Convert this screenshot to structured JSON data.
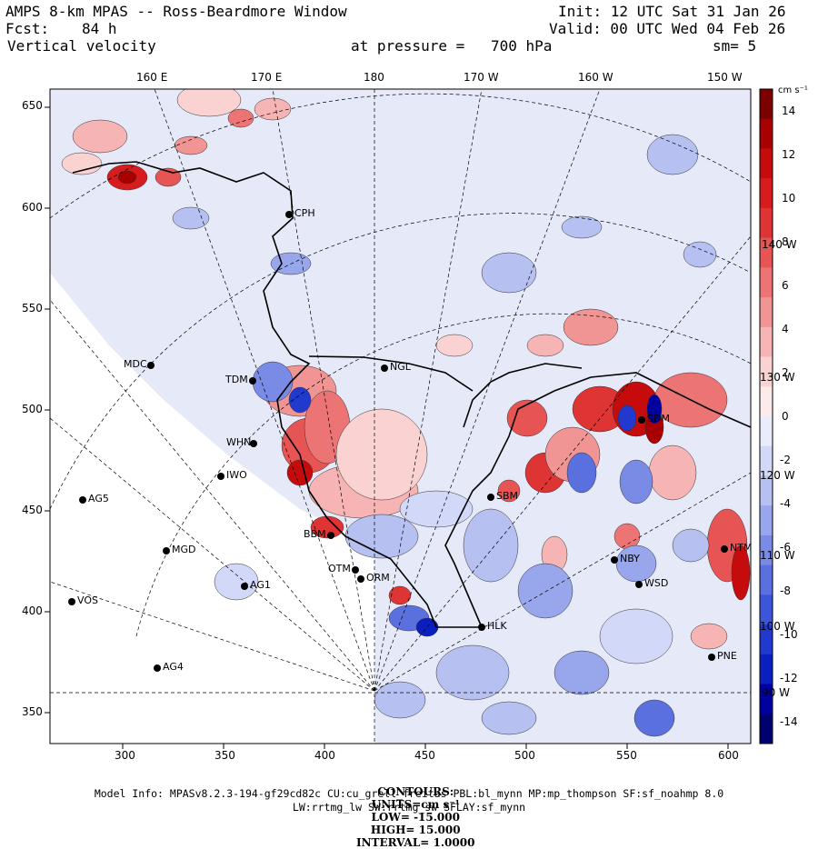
{
  "header": {
    "title": "AMPS 8-km MPAS -- Ross-Beardmore Window",
    "forecast_label": "Fcst:",
    "forecast_value": "84 h",
    "field": "Vertical velocity",
    "init": "Init: 12 UTC Sat 31 Jan 26",
    "valid": "Valid: 00 UTC Wed 04 Feb 26",
    "pressure_label": "at pressure =",
    "pressure_value": "700 hPa",
    "smoothing": "sm= 5"
  },
  "top_longitudes": [
    "160 E",
    "170 E",
    "180",
    "170 W",
    "160 W",
    "150 W"
  ],
  "grid_lat_labels": [
    "140 W",
    "130 W",
    "120 W",
    "110 W",
    "100 W",
    "90 W"
  ],
  "y_ticks": [
    "650",
    "600",
    "550",
    "500",
    "450",
    "400",
    "350"
  ],
  "x_ticks": [
    "300",
    "350",
    "400",
    "450",
    "500",
    "550",
    "600"
  ],
  "colorbar": {
    "units": "cm s⁻¹",
    "ticks": [
      "14",
      "12",
      "10",
      "8",
      "6",
      "4",
      "2",
      "0",
      "-2",
      "-4",
      "-6",
      "-8",
      "-10",
      "-12",
      "-14"
    ],
    "colors_positive": [
      "#fdeaea",
      "#fad2d2",
      "#f6b4b4",
      "#f19494",
      "#ec7474",
      "#e65454",
      "#df3434",
      "#d61c1c",
      "#c50b0b",
      "#a80000",
      "#7d0000"
    ],
    "colors_negative": [
      "#e9ecfb",
      "#d2d8f7",
      "#b6c0f1",
      "#98a6ec",
      "#7a8be6",
      "#5b70df",
      "#3d55d8",
      "#2139cf",
      "#0b1fc0",
      "#0000a0",
      "#00006e"
    ]
  },
  "stations": [
    {
      "code": "CPH"
    },
    {
      "code": "NGL"
    },
    {
      "code": "MDC"
    },
    {
      "code": "TDM"
    },
    {
      "code": "WHN"
    },
    {
      "code": "IWO"
    },
    {
      "code": "AG5"
    },
    {
      "code": "BBM"
    },
    {
      "code": "MGD"
    },
    {
      "code": "OTM"
    },
    {
      "code": "SBM"
    },
    {
      "code": "ORM"
    },
    {
      "code": "AG1"
    },
    {
      "code": "VOS"
    },
    {
      "code": "HLK"
    },
    {
      "code": "NBY"
    },
    {
      "code": "NTM"
    },
    {
      "code": "WSD"
    },
    {
      "code": "AG4"
    },
    {
      "code": "PNE"
    },
    {
      "code": "SDM"
    }
  ],
  "footer": {
    "contours": "CONTOURS:",
    "units": "UNITS=cm s⁻¹",
    "low": "LOW= -15.000",
    "high": "HIGH= 15.000",
    "interval": "INTERVAL= 1.0000",
    "model_info": "Model Info: MPASv8.2.3-194-gf29cd82c CU:cu_grell_freitas PBL:bl_mynn MP:mp_thompson SF:sf_noahmp 8.0",
    "model_info2": "LW:rrtmg_lw SW:rrtmg_sw SFLAY:sf_mynn"
  }
}
